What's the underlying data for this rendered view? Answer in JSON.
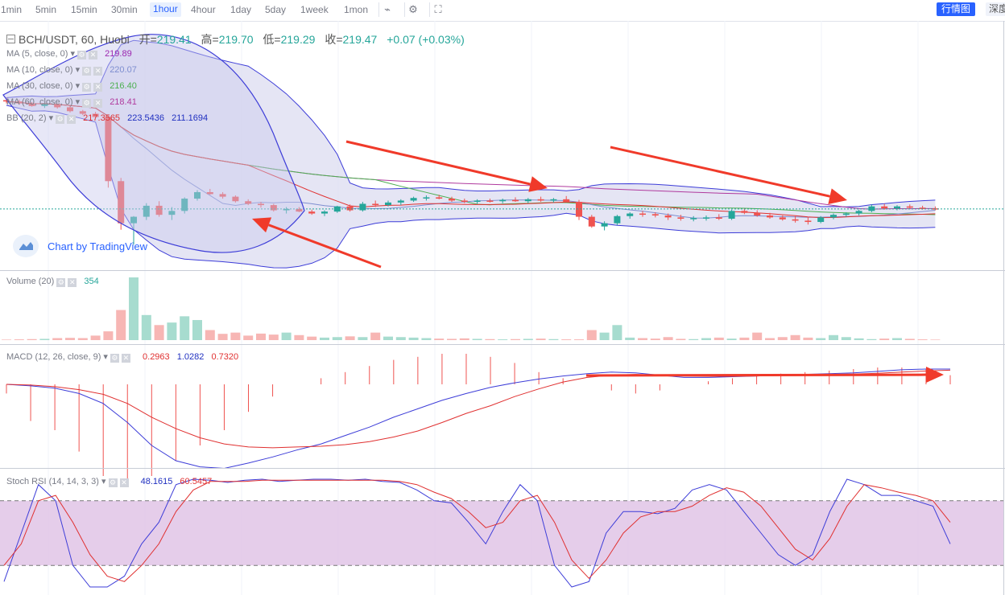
{
  "toolbar": {
    "timeframes": [
      "1min",
      "5min",
      "15min",
      "30min",
      "1hour",
      "4hour",
      "1day",
      "5day",
      "1week",
      "1mon"
    ],
    "active_timeframe": "1hour",
    "icons": [
      "chart-type-icon",
      "settings-icon",
      "fullscreen-icon"
    ],
    "btn_chart": "行情图",
    "btn_depth": "深度"
  },
  "header": {
    "symbol": "BCH/USDT, 60, Huobi",
    "open_label": "开=",
    "open": "219.41",
    "high_label": "高=",
    "high": "219.70",
    "low_label": "低=",
    "low": "219.29",
    "close_label": "收=",
    "close": "219.47",
    "change": "+0.07 (+0.03%)"
  },
  "indicators": {
    "ma5": {
      "label": "MA (5, close, 0)",
      "value": "219.89",
      "color": "#9c27b0"
    },
    "ma10": {
      "label": "MA (10, close, 0)",
      "value": "220.07",
      "color": "#7e8ed0"
    },
    "ma30": {
      "label": "MA (30, close, 0)",
      "value": "216.40",
      "color": "#4caf50"
    },
    "ma60": {
      "label": "MA (60, close, 0)",
      "value": "218.41",
      "color": "#b03a9e"
    },
    "bb": {
      "label": "BB (20, 2)",
      "basis": "217.3565",
      "upper": "223.5436",
      "lower": "211.1694"
    }
  },
  "watermark": "Chart by TradingView",
  "volume": {
    "label": "Volume (20)",
    "value": "354"
  },
  "macd": {
    "label": "MACD (12, 26, close, 9)",
    "hist": "0.2963",
    "macd": "1.0282",
    "signal": "0.7320"
  },
  "stoch": {
    "label": "Stoch RSI (14, 14, 3, 3)",
    "k": "48.1615",
    "d": "60.5457"
  },
  "colors": {
    "up": "#26a69a",
    "down": "#ef5350",
    "arrow": "#f03a2a",
    "bb_fill": "#dcdcf0",
    "stoch_band": "#e2c8e8"
  },
  "chart_data": {
    "type": "candlestick",
    "interval": "1hour",
    "ohlc": [
      [
        221.5,
        221.9,
        221.0,
        221.3
      ],
      [
        221.3,
        221.6,
        220.8,
        221.0
      ],
      [
        221.0,
        221.2,
        220.5,
        220.6
      ],
      [
        220.6,
        221.0,
        220.3,
        220.9
      ],
      [
        220.9,
        221.0,
        220.2,
        220.4
      ],
      [
        220.4,
        220.6,
        219.6,
        219.8
      ],
      [
        219.8,
        220.0,
        219.2,
        219.4
      ],
      [
        219.4,
        219.7,
        218.8,
        218.9
      ],
      [
        218.9,
        219.1,
        208.0,
        209.0
      ],
      [
        209.0,
        209.5,
        201.5,
        202.5
      ],
      [
        202.5,
        203.6,
        199.2,
        203.5
      ],
      [
        203.5,
        205.6,
        203.0,
        205.2
      ],
      [
        205.2,
        205.9,
        203.5,
        203.8
      ],
      [
        203.8,
        205.0,
        203.0,
        204.4
      ],
      [
        204.4,
        206.5,
        204.0,
        206.3
      ],
      [
        206.3,
        207.6,
        206.0,
        207.3
      ],
      [
        207.3,
        207.8,
        206.9,
        207.0
      ],
      [
        207.0,
        207.3,
        206.3,
        206.6
      ],
      [
        206.6,
        206.8,
        205.7,
        205.9
      ],
      [
        205.9,
        206.2,
        205.3,
        205.5
      ],
      [
        205.5,
        205.8,
        204.9,
        205.3
      ],
      [
        205.3,
        205.5,
        204.3,
        204.5
      ],
      [
        204.5,
        205.0,
        204.0,
        204.7
      ],
      [
        204.7,
        205.0,
        204.2,
        204.3
      ],
      [
        204.3,
        204.6,
        203.8,
        204.0
      ],
      [
        204.0,
        204.5,
        203.6,
        204.3
      ],
      [
        204.3,
        205.2,
        204.1,
        205.1
      ],
      [
        205.1,
        205.4,
        204.3,
        204.5
      ],
      [
        204.5,
        205.8,
        204.3,
        205.5
      ],
      [
        205.5,
        206.0,
        205.0,
        205.3
      ],
      [
        205.3,
        206.0,
        205.1,
        205.7
      ],
      [
        205.7,
        206.2,
        205.3,
        206.0
      ],
      [
        206.0,
        206.6,
        205.8,
        206.4
      ],
      [
        206.4,
        206.8,
        206.0,
        206.5
      ],
      [
        206.5,
        206.9,
        206.2,
        206.3
      ],
      [
        206.3,
        206.6,
        205.8,
        206.0
      ],
      [
        206.0,
        206.3,
        205.6,
        205.8
      ],
      [
        205.8,
        206.2,
        205.5,
        206.0
      ],
      [
        206.0,
        206.3,
        205.7,
        205.9
      ],
      [
        205.9,
        206.3,
        205.6,
        206.1
      ],
      [
        206.1,
        206.5,
        205.8,
        205.9
      ],
      [
        205.9,
        206.4,
        205.6,
        206.2
      ],
      [
        206.2,
        206.6,
        205.8,
        206.0
      ],
      [
        206.0,
        206.4,
        205.7,
        206.2
      ],
      [
        206.2,
        206.7,
        205.9,
        205.8
      ],
      [
        205.8,
        206.1,
        203.0,
        203.5
      ],
      [
        203.5,
        203.8,
        201.8,
        202.0
      ],
      [
        202.0,
        202.8,
        201.4,
        202.5
      ],
      [
        202.5,
        203.8,
        202.2,
        203.6
      ],
      [
        203.6,
        204.2,
        203.2,
        204.0
      ],
      [
        204.0,
        204.4,
        203.5,
        203.9
      ],
      [
        203.9,
        204.2,
        203.4,
        203.7
      ],
      [
        203.7,
        204.0,
        203.0,
        203.4
      ],
      [
        203.4,
        203.8,
        202.9,
        203.2
      ],
      [
        203.2,
        203.6,
        202.8,
        203.3
      ],
      [
        203.3,
        203.7,
        202.9,
        203.4
      ],
      [
        203.4,
        203.9,
        203.0,
        203.2
      ],
      [
        203.2,
        204.6,
        203.0,
        204.4
      ],
      [
        204.4,
        204.8,
        203.9,
        204.1
      ],
      [
        204.1,
        204.5,
        203.5,
        203.7
      ],
      [
        203.7,
        204.1,
        203.2,
        203.4
      ],
      [
        203.4,
        203.7,
        202.9,
        203.1
      ],
      [
        203.1,
        203.6,
        202.6,
        202.9
      ],
      [
        202.9,
        203.5,
        202.3,
        202.7
      ],
      [
        202.7,
        203.6,
        202.5,
        203.4
      ],
      [
        203.4,
        204.0,
        203.1,
        203.8
      ],
      [
        203.8,
        204.2,
        203.5,
        204.0
      ],
      [
        204.0,
        204.6,
        203.7,
        204.4
      ],
      [
        204.4,
        205.4,
        204.2,
        205.1
      ],
      [
        205.1,
        205.5,
        204.6,
        204.8
      ],
      [
        204.8,
        205.3,
        204.5,
        205.1
      ],
      [
        205.1,
        205.4,
        204.7,
        204.9
      ],
      [
        204.9,
        205.2,
        204.6,
        204.8
      ],
      [
        204.8,
        205.1,
        204.5,
        204.7
      ]
    ],
    "volume": [
      2,
      3,
      4,
      5,
      8,
      9,
      8,
      18,
      35,
      120,
      250,
      100,
      60,
      70,
      95,
      80,
      40,
      25,
      30,
      18,
      26,
      22,
      30,
      20,
      14,
      10,
      12,
      15,
      12,
      30,
      14,
      12,
      10,
      8,
      6,
      5,
      7,
      5,
      4,
      3,
      4,
      5,
      6,
      4,
      3,
      3,
      40,
      30,
      60,
      10,
      8,
      6,
      12,
      5,
      4,
      8,
      10,
      6,
      10,
      30,
      8,
      12,
      20,
      10,
      8,
      20,
      12,
      7,
      4,
      6,
      8,
      5,
      3,
      2
    ],
    "macd": {
      "macd": [
        0,
        -0.2,
        -0.5,
        -1.2,
        -2.5,
        -5,
        -8,
        -10,
        -10.8,
        -11,
        -10.3,
        -9.5,
        -8.6,
        -7.8,
        -6.7,
        -5.6,
        -4.3,
        -3.2,
        -2.1,
        -1.2,
        -0.4,
        0.2,
        0.7,
        1.1,
        1.4,
        1.6,
        1.5,
        1.2,
        0.9,
        0.9,
        1.0,
        1.1,
        1.2,
        1.3,
        1.4,
        1.5,
        1.7,
        1.9,
        2.0,
        2.0
      ],
      "signal": [
        0,
        -0.1,
        -0.3,
        -0.7,
        -1.3,
        -2.5,
        -4.3,
        -5.8,
        -7.0,
        -7.8,
        -8.2,
        -8.3,
        -8.2,
        -8.1,
        -7.9,
        -7.5,
        -6.9,
        -6.1,
        -5.0,
        -3.8,
        -2.8,
        -1.6,
        -0.6,
        0.3,
        0.9,
        1.2,
        1.3,
        1.2,
        1.1,
        1.05,
        1.05,
        1.1,
        1.2,
        1.25,
        1.3,
        1.35,
        1.45,
        1.6,
        1.75,
        1.85
      ],
      "hist": [
        -0.3,
        -1.2,
        -1.5,
        -2.2,
        -3.0,
        -3.2,
        -3.0,
        -2.5,
        -2.0,
        -1.5,
        -0.9,
        -0.4,
        0,
        0.2,
        0.4,
        0.6,
        0.8,
        0.9,
        1.0,
        1.0,
        0.9,
        0.7,
        0.4,
        0.2,
        0,
        -0.2,
        -0.3,
        -0.2,
        0,
        0.1,
        0.2,
        0.3,
        0.35,
        0.4,
        0.45,
        0.5,
        0.55,
        0.55,
        0.5,
        0.3
      ]
    },
    "stoch_rsi": {
      "k": [
        5,
        50,
        95,
        80,
        20,
        0,
        0,
        10,
        40,
        60,
        95,
        100,
        99,
        97,
        99,
        100,
        98,
        99,
        100,
        100,
        99,
        100,
        98,
        97,
        90,
        80,
        78,
        60,
        40,
        70,
        95,
        80,
        20,
        0,
        5,
        50,
        70,
        70,
        68,
        73,
        90,
        95,
        90,
        70,
        50,
        30,
        20,
        30,
        70,
        100,
        95,
        85,
        85,
        80,
        75,
        40
      ],
      "d": [
        20,
        40,
        80,
        85,
        60,
        30,
        10,
        5,
        20,
        40,
        70,
        90,
        98,
        98,
        98,
        99,
        99,
        99,
        99,
        99,
        99,
        99,
        99,
        98,
        95,
        88,
        82,
        70,
        55,
        60,
        80,
        85,
        60,
        25,
        8,
        25,
        50,
        65,
        70,
        70,
        75,
        85,
        92,
        88,
        75,
        55,
        35,
        25,
        45,
        75,
        95,
        92,
        88,
        85,
        80,
        60
      ]
    },
    "ylim": [
      196,
      232
    ]
  }
}
